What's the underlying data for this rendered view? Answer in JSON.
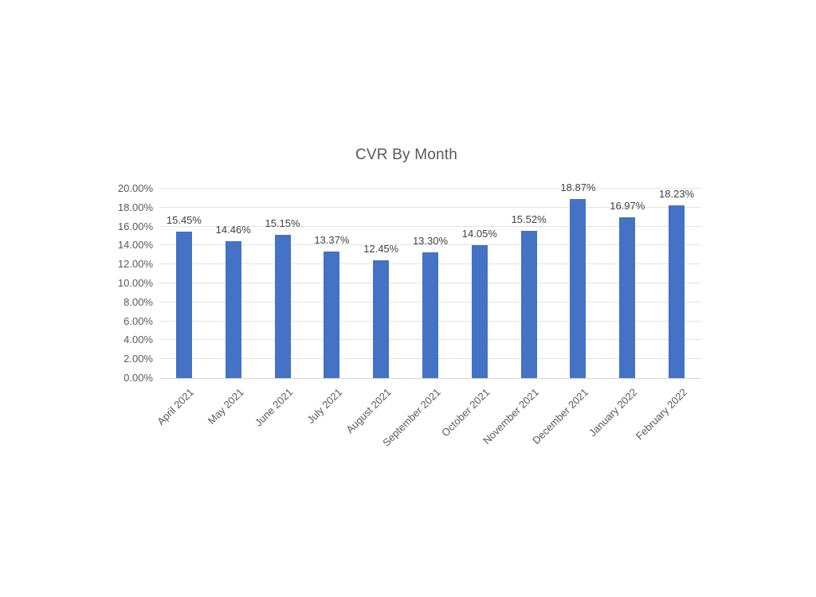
{
  "chart": {
    "title": "CVR By Month"
  },
  "chart_data": {
    "type": "bar",
    "title": "CVR By Month",
    "categories": [
      "April 2021",
      "May 2021",
      "June 2021",
      "July 2021",
      "August 2021",
      "September 2021",
      "October 2021",
      "November 2021",
      "December 2021",
      "January 2022",
      "February 2022"
    ],
    "values": [
      15.45,
      14.46,
      15.15,
      13.37,
      12.45,
      13.3,
      14.05,
      15.52,
      18.87,
      16.97,
      18.23
    ],
    "value_labels": [
      "15.45%",
      "14.46%",
      "15.15%",
      "13.37%",
      "12.45%",
      "13.30%",
      "14.05%",
      "15.52%",
      "18.87%",
      "16.97%",
      "18.23%"
    ],
    "xlabel": "",
    "ylabel": "",
    "ylim": [
      0,
      20
    ],
    "ytick_step": 2,
    "ytick_labels": [
      "0.00%",
      "2.00%",
      "4.00%",
      "6.00%",
      "8.00%",
      "10.00%",
      "12.00%",
      "14.00%",
      "16.00%",
      "18.00%",
      "20.00%"
    ],
    "grid": true,
    "legend": false,
    "bar_color": "#4472C4",
    "gridline_color": "#E2E2E2",
    "title_color": "#595959",
    "axis_label_color": "#595959",
    "data_label_color": "#404040"
  }
}
